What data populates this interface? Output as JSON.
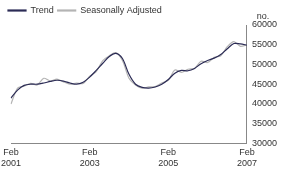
{
  "chart_data": {
    "type": "line",
    "y_label": "no.",
    "categories": [
      "Feb 2001",
      null,
      null,
      null,
      null,
      null,
      null,
      null,
      null,
      null,
      null,
      null,
      "Feb 2003",
      null,
      null,
      null,
      null,
      null,
      null,
      null,
      null,
      null,
      null,
      null,
      "Feb 2005",
      null,
      null,
      null,
      null,
      null,
      null,
      null,
      null,
      null,
      null,
      null,
      "Feb 2007"
    ],
    "series": [
      {
        "name": "Trend",
        "color": "#2b2b55",
        "values": [
          41500,
          43500,
          44700,
          45000,
          45000,
          45300,
          45700,
          46000,
          45800,
          45300,
          45000,
          45500,
          46800,
          48500,
          50300,
          52000,
          52800,
          51500,
          47500,
          45000,
          44200,
          44000,
          44300,
          45000,
          46200,
          47800,
          48500,
          48400,
          49000,
          50200,
          51000,
          51600,
          52500,
          54000,
          55300,
          55200,
          54900
        ]
      },
      {
        "name": "Seasonally Adjusted",
        "color": "#b4b4b4",
        "values": [
          40000,
          44000,
          44500,
          45200,
          44800,
          46500,
          45800,
          46300,
          45600,
          45000,
          45300,
          45200,
          47000,
          48200,
          51000,
          52200,
          53000,
          51000,
          46500,
          44800,
          44000,
          44300,
          44400,
          45300,
          46000,
          48600,
          48000,
          48800,
          49000,
          50800,
          50500,
          51800,
          52200,
          54500,
          55800,
          54600,
          55000
        ]
      }
    ],
    "ylim": [
      30000,
      60000
    ],
    "yticks": [
      30000,
      35000,
      40000,
      45000,
      50000,
      55000,
      60000
    ],
    "grid": false,
    "legend": "top-left"
  }
}
